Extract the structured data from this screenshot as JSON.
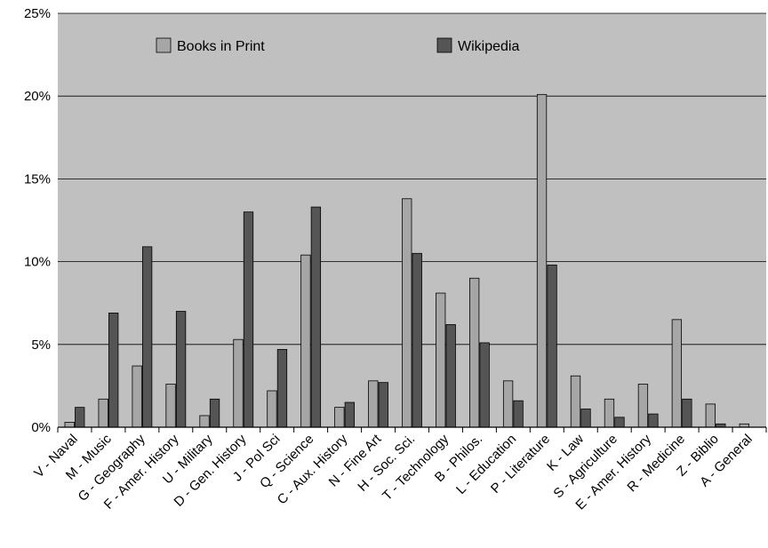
{
  "chart_data": {
    "type": "bar",
    "title": "",
    "xlabel": "",
    "ylabel": "",
    "ylim": [
      0,
      25
    ],
    "yticks": [
      "0%",
      "5%",
      "10%",
      "15%",
      "20%",
      "25%"
    ],
    "grid": true,
    "legend_position": "top",
    "categories": [
      "V - Naval",
      "M - Music",
      "G - Geography",
      "F - Amer. History",
      "U - Military",
      "D - Gen. History",
      "J - Pol Sci",
      "Q - Science",
      "C - Aux. History",
      "N - Fine Art",
      "H - Soc. Sci.",
      "T - Technology",
      "B - Philos.",
      "L - Education",
      "P - Literature",
      "K - Law",
      "S - Agriculture",
      "E - Amer. History",
      "R - Medicine",
      "Z - Biblio",
      "A - General"
    ],
    "series": [
      {
        "name": "Books in Print",
        "color": "#a6a6a6",
        "values": [
          0.3,
          1.7,
          3.7,
          2.6,
          0.7,
          5.3,
          2.2,
          10.4,
          1.2,
          2.8,
          13.8,
          8.1,
          9.0,
          2.8,
          20.1,
          3.1,
          1.7,
          2.6,
          6.5,
          1.4,
          0.2
        ]
      },
      {
        "name": "Wikipedia",
        "color": "#555555",
        "values": [
          1.2,
          6.9,
          10.9,
          7.0,
          1.7,
          13.0,
          4.7,
          13.3,
          1.5,
          2.7,
          10.5,
          6.2,
          5.1,
          1.6,
          9.8,
          1.1,
          0.6,
          0.8,
          1.7,
          0.2,
          0.0
        ]
      }
    ]
  },
  "colors": {
    "plot_background": "#c0c0c0",
    "gridline": "#000000"
  }
}
